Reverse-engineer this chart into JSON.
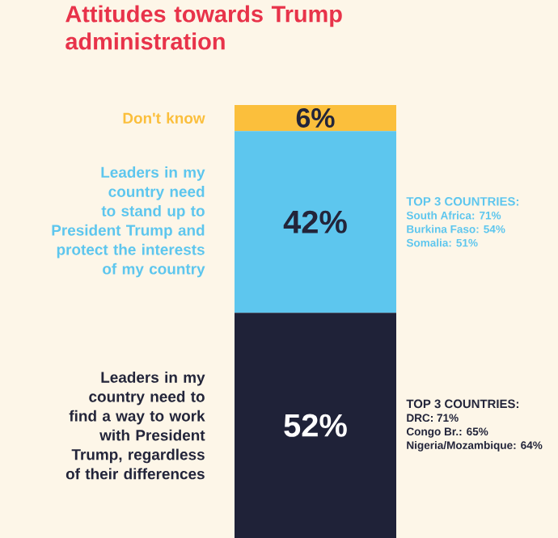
{
  "chart_data": {
    "type": "bar",
    "title": "Attitudes towards Trump administration",
    "categories": [
      null
    ],
    "stacked": true,
    "tick_labels": false,
    "series": [
      {
        "name": "Leaders in my country need to find a way to work with President Trump, regardless of their differences",
        "color": "#1f2238",
        "values": [
          52
        ],
        "value_labels": [
          "52%"
        ]
      },
      {
        "name": "Leaders in my country need to stand up to President Trump and protect the interests of my country",
        "color": "#5dc6ee",
        "values": [
          42
        ],
        "value_labels": [
          "42%"
        ]
      },
      {
        "name": "Don't know",
        "color": "#fbbf3c",
        "values": [
          6
        ],
        "value_labels": [
          "6%"
        ]
      }
    ],
    "annotations": [
      "TOP 3 COUNTRIES:",
      "South Africa: 71%",
      "Burkina Faso: 54%",
      "Somalia: 51%",
      "TOP 3 COUNTRIES:",
      "DRC: 71%",
      "Congo Br.: 65%",
      "Nigeria/Mozambique: 64%"
    ]
  }
}
